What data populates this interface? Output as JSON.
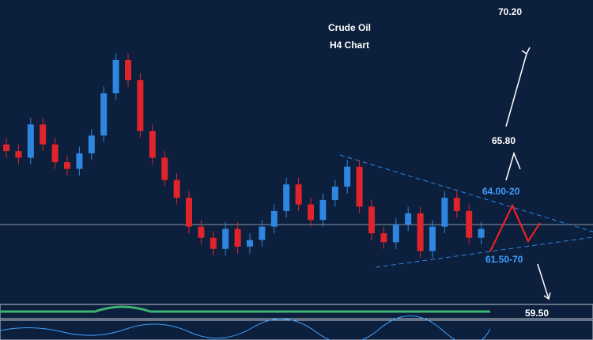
{
  "chart_data": {
    "type": "candlestick",
    "title": "Crude Oil",
    "subtitle": "H4 Chart",
    "annotations": [
      "70.20",
      "65.80",
      "64.00-20",
      "61.50-70",
      "59.50"
    ],
    "annotation_colors": [
      "#ffffff",
      "#ffffff",
      "#3fa0ff",
      "#3fa0ff",
      "#ffffff"
    ],
    "up_color": "#2f86e0",
    "down_color": "#e0242c",
    "ylim": [
      59.4,
      73.1
    ],
    "opens": [
      66.6,
      66.3,
      66.0,
      67.5,
      66.6,
      65.8,
      65.5,
      66.2,
      67.0,
      68.9,
      70.4,
      69.5,
      67.2,
      66.0,
      65.0,
      64.2,
      62.9,
      62.4,
      61.9,
      62.8,
      62.0,
      62.3,
      62.9,
      63.6,
      64.8,
      63.9,
      63.2,
      64.1,
      64.7,
      65.6,
      63.8,
      62.6,
      62.2,
      63.0,
      63.5,
      61.8,
      62.9,
      64.2,
      63.6,
      62.4
    ],
    "highs": [
      66.9,
      66.6,
      67.8,
      67.8,
      66.9,
      66.1,
      66.5,
      67.3,
      69.2,
      70.7,
      70.7,
      69.8,
      67.5,
      66.3,
      65.3,
      64.5,
      63.2,
      62.7,
      63.1,
      63.1,
      62.6,
      63.2,
      63.9,
      65.1,
      65.1,
      64.2,
      64.4,
      65.0,
      65.9,
      65.9,
      64.1,
      62.9,
      63.3,
      63.8,
      63.8,
      63.2,
      64.5,
      64.5,
      63.9,
      63.1
    ],
    "lows": [
      66.0,
      65.7,
      65.7,
      66.3,
      65.5,
      65.2,
      65.2,
      65.9,
      66.7,
      68.6,
      69.2,
      66.9,
      65.7,
      64.7,
      63.9,
      62.6,
      62.1,
      61.6,
      61.6,
      61.7,
      61.7,
      62.0,
      62.6,
      63.3,
      63.6,
      62.9,
      62.9,
      63.8,
      64.4,
      63.5,
      62.3,
      61.9,
      61.9,
      62.7,
      61.5,
      61.5,
      62.6,
      63.3,
      62.1,
      62.1
    ],
    "closes": [
      66.3,
      66.0,
      67.5,
      66.6,
      65.8,
      65.5,
      66.2,
      67.0,
      68.9,
      70.4,
      69.5,
      67.2,
      66.0,
      65.0,
      64.2,
      62.9,
      62.4,
      61.9,
      62.8,
      62.0,
      62.3,
      62.9,
      63.6,
      64.8,
      63.9,
      63.2,
      64.1,
      64.7,
      65.6,
      63.8,
      62.6,
      62.2,
      63.0,
      63.5,
      61.8,
      62.9,
      64.2,
      63.6,
      62.4,
      62.8
    ]
  }
}
